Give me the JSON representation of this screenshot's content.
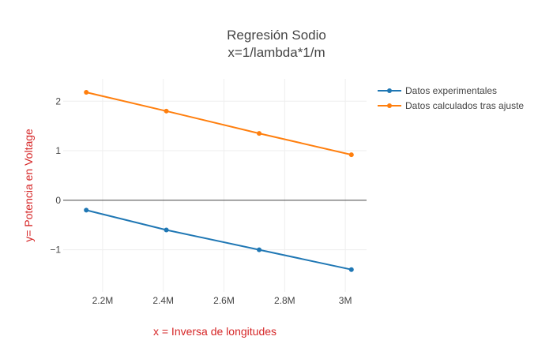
{
  "chart_data": {
    "type": "line",
    "title_lines": [
      "Regresión Sodio",
      "x=1/lambda*1/m"
    ],
    "xlabel": "x = Inversa de longitudes",
    "ylabel": "y= Potencia en Voltage",
    "axis_title_color": "#d62728",
    "xlim": [
      2.07,
      3.07
    ],
    "ylim": [
      -1.85,
      2.45
    ],
    "x_ticks": [
      2.2,
      2.4,
      2.6,
      2.8,
      3.0
    ],
    "x_tick_labels": [
      "2.2M",
      "2.4M",
      "2.6M",
      "2.8M",
      "3M"
    ],
    "y_ticks": [
      -1,
      0,
      1,
      2
    ],
    "y_tick_labels": [
      "−1",
      "0",
      "1",
      "2"
    ],
    "grid": true,
    "zero_line": true,
    "legend_position": "top-right",
    "series": [
      {
        "name": "Datos experimentales",
        "color": "#1f77b4",
        "x": [
          2.146,
          2.41,
          2.716,
          3.02
        ],
        "y": [
          -0.2,
          -0.6,
          -1.0,
          -1.4
        ]
      },
      {
        "name": "Datos calculados tras ajuste",
        "color": "#ff7f0e",
        "x": [
          2.146,
          2.41,
          2.716,
          3.02
        ],
        "y": [
          2.18,
          1.8,
          1.35,
          0.92
        ]
      }
    ]
  }
}
